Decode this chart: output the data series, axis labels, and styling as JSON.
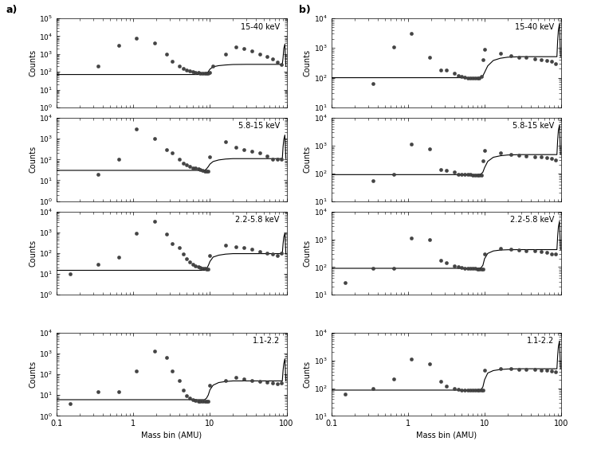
{
  "fig_width": 7.49,
  "fig_height": 5.74,
  "dpi": 100,
  "panel_a_label": "a)",
  "panel_b_label": "b)",
  "xlabel": "Mass bin (AMU)",
  "ylabel": "Counts",
  "xlim": [
    0.1,
    100
  ],
  "panel_a": {
    "subplots": [
      {
        "label": "15-40 keV",
        "ylim": [
          1,
          100000.0
        ],
        "line_x": [
          0.1,
          0.5,
          1.0,
          2.0,
          3.0,
          4.0,
          5.0,
          6.0,
          7.0,
          8.0,
          8.5,
          9.0,
          9.5,
          10.0,
          11.0,
          13.0,
          16.0,
          20.0,
          30.0,
          40.0,
          50.0,
          60.0,
          70.0,
          80.0,
          88.0,
          90.0,
          92.0,
          95.0,
          98.0
        ],
        "line_y": [
          70,
          70,
          70,
          70,
          70,
          70,
          70,
          70,
          70,
          70,
          70,
          80,
          100,
          140,
          190,
          220,
          240,
          255,
          260,
          260,
          260,
          260,
          260,
          260,
          260,
          600,
          2000,
          3500,
          200
        ],
        "scatter_x": [
          0.35,
          0.65,
          1.1,
          1.9,
          2.7,
          3.2,
          4.0,
          4.5,
          5.0,
          5.5,
          6.0,
          6.5,
          7.0,
          7.5,
          8.0,
          8.5,
          9.0,
          9.5,
          10.0,
          11.0,
          16.0,
          22.0,
          28.0,
          35.0,
          45.0,
          55.0,
          65.0,
          75.0,
          85.0
        ],
        "scatter_y": [
          200,
          3000,
          8000,
          4000,
          1000,
          400,
          200,
          150,
          130,
          115,
          100,
          95,
          90,
          85,
          80,
          80,
          80,
          85,
          90,
          200,
          1000,
          2500,
          2000,
          1500,
          1000,
          700,
          500,
          350,
          250
        ]
      },
      {
        "label": "5.8-15 keV",
        "ylim": [
          1,
          10000.0
        ],
        "line_x": [
          0.1,
          0.5,
          1.0,
          2.0,
          3.0,
          4.0,
          5.0,
          6.0,
          7.0,
          8.0,
          8.5,
          9.0,
          9.5,
          10.0,
          11.0,
          13.0,
          16.0,
          20.0,
          30.0,
          40.0,
          50.0,
          60.0,
          70.0,
          80.0,
          88.0,
          90.0,
          92.0,
          95.0,
          98.0
        ],
        "line_y": [
          30,
          30,
          30,
          30,
          30,
          30,
          30,
          30,
          30,
          30,
          30,
          35,
          45,
          60,
          80,
          95,
          105,
          110,
          110,
          110,
          110,
          110,
          110,
          110,
          110,
          400,
          900,
          1500,
          110
        ],
        "scatter_x": [
          0.35,
          0.65,
          1.1,
          1.9,
          2.7,
          3.2,
          4.0,
          4.5,
          5.0,
          5.5,
          6.0,
          6.5,
          7.0,
          7.5,
          8.0,
          8.5,
          9.0,
          9.5,
          10.0,
          16.0,
          22.0,
          28.0,
          35.0,
          45.0,
          55.0,
          65.0,
          75.0,
          85.0
        ],
        "scatter_y": [
          20,
          100,
          3000,
          1000,
          300,
          200,
          100,
          65,
          55,
          45,
          40,
          38,
          35,
          32,
          30,
          28,
          28,
          28,
          130,
          700,
          400,
          300,
          250,
          200,
          150,
          100,
          100,
          100
        ]
      },
      {
        "label": "2.2-5.8 keV",
        "ylim": [
          1,
          10000.0
        ],
        "line_x": [
          0.1,
          0.5,
          1.0,
          2.0,
          3.0,
          4.0,
          5.0,
          6.0,
          7.0,
          8.0,
          8.5,
          9.0,
          9.5,
          10.0,
          11.0,
          13.0,
          16.0,
          20.0,
          30.0,
          40.0,
          50.0,
          60.0,
          70.0,
          80.0,
          88.0,
          90.0,
          92.0,
          95.0,
          98.0
        ],
        "line_y": [
          15,
          15,
          15,
          15,
          15,
          15,
          15,
          15,
          15,
          15,
          15,
          18,
          25,
          40,
          65,
          80,
          90,
          95,
          95,
          95,
          95,
          95,
          95,
          95,
          95,
          280,
          600,
          900,
          95
        ],
        "scatter_x": [
          0.15,
          0.35,
          0.65,
          1.1,
          1.9,
          2.7,
          3.2,
          4.0,
          4.5,
          5.0,
          5.5,
          6.0,
          6.5,
          7.0,
          7.5,
          8.0,
          8.5,
          9.0,
          9.5,
          10.0,
          16.0,
          22.0,
          28.0,
          35.0,
          45.0,
          55.0,
          65.0,
          75.0,
          85.0
        ],
        "scatter_y": [
          10,
          28,
          65,
          900,
          3500,
          800,
          300,
          180,
          90,
          55,
          38,
          30,
          25,
          22,
          20,
          18,
          18,
          17,
          17,
          80,
          250,
          200,
          190,
          150,
          120,
          100,
          90,
          75,
          100
        ]
      },
      {
        "label": "1.1-2.2",
        "ylim": [
          1,
          10000.0
        ],
        "line_x": [
          0.1,
          0.5,
          1.0,
          2.0,
          3.0,
          4.0,
          5.0,
          6.0,
          7.0,
          8.0,
          8.5,
          9.0,
          9.5,
          10.0,
          11.0,
          13.0,
          16.0,
          20.0,
          30.0,
          40.0,
          50.0,
          60.0,
          70.0,
          80.0,
          88.0,
          90.0,
          92.0,
          95.0,
          98.0
        ],
        "line_y": [
          6,
          6,
          6,
          6,
          6,
          6,
          6,
          6,
          6,
          6,
          6,
          7,
          10,
          18,
          30,
          40,
          45,
          48,
          48,
          48,
          48,
          48,
          48,
          48,
          48,
          150,
          320,
          550,
          48
        ],
        "scatter_x": [
          0.15,
          0.35,
          0.65,
          1.1,
          1.9,
          2.7,
          3.2,
          4.0,
          4.5,
          5.0,
          5.5,
          6.0,
          6.5,
          7.0,
          7.5,
          8.0,
          8.5,
          9.0,
          9.5,
          10.0,
          16.0,
          22.0,
          28.0,
          35.0,
          45.0,
          55.0,
          65.0,
          75.0,
          85.0
        ],
        "scatter_y": [
          4,
          14,
          14,
          150,
          1300,
          650,
          150,
          50,
          18,
          9,
          7,
          6,
          5.5,
          5,
          5,
          5,
          5,
          5,
          5,
          30,
          50,
          70,
          60,
          50,
          45,
          42,
          38,
          35,
          38
        ]
      }
    ]
  },
  "panel_b": {
    "subplots": [
      {
        "label": "15-40 keV",
        "ylim": [
          10,
          10000.0
        ],
        "line_x": [
          0.1,
          0.5,
          1.0,
          2.0,
          3.0,
          4.0,
          5.0,
          6.0,
          7.0,
          8.0,
          8.5,
          9.0,
          9.5,
          10.0,
          11.0,
          13.0,
          16.0,
          20.0,
          30.0,
          40.0,
          50.0,
          60.0,
          70.0,
          80.0,
          88.0,
          90.0,
          92.0,
          95.0,
          98.0
        ],
        "line_y": [
          100,
          100,
          100,
          100,
          100,
          100,
          100,
          100,
          100,
          100,
          100,
          105,
          115,
          150,
          250,
          380,
          450,
          490,
          510,
          510,
          510,
          510,
          510,
          510,
          510,
          1800,
          4000,
          6500,
          510
        ],
        "scatter_x": [
          0.35,
          0.65,
          1.1,
          1.9,
          2.7,
          3.2,
          4.0,
          4.5,
          5.0,
          5.5,
          6.0,
          6.5,
          7.0,
          7.5,
          8.0,
          8.5,
          9.0,
          9.5,
          10.0,
          16.0,
          22.0,
          28.0,
          35.0,
          45.0,
          55.0,
          65.0,
          75.0,
          85.0
        ],
        "scatter_y": [
          65,
          1100,
          3000,
          500,
          180,
          180,
          140,
          120,
          110,
          105,
          100,
          100,
          100,
          100,
          100,
          100,
          110,
          400,
          900,
          650,
          550,
          490,
          480,
          440,
          410,
          380,
          350,
          300
        ]
      },
      {
        "label": "5.8-15 keV",
        "ylim": [
          10,
          10000.0
        ],
        "line_x": [
          0.1,
          0.5,
          1.0,
          2.0,
          3.0,
          4.0,
          5.0,
          6.0,
          7.0,
          8.0,
          8.5,
          9.0,
          9.5,
          10.0,
          11.0,
          13.0,
          16.0,
          20.0,
          30.0,
          40.0,
          50.0,
          60.0,
          70.0,
          80.0,
          88.0,
          90.0,
          92.0,
          95.0,
          98.0
        ],
        "line_y": [
          90,
          90,
          90,
          90,
          90,
          90,
          90,
          90,
          90,
          90,
          90,
          95,
          110,
          160,
          270,
          380,
          430,
          460,
          475,
          475,
          475,
          475,
          475,
          475,
          475,
          1600,
          3600,
          5500,
          475
        ],
        "scatter_x": [
          0.35,
          0.65,
          1.1,
          1.9,
          2.7,
          3.2,
          4.0,
          4.5,
          5.0,
          5.5,
          6.0,
          6.5,
          7.0,
          7.5,
          8.0,
          8.5,
          9.0,
          9.5,
          10.0,
          16.0,
          22.0,
          28.0,
          35.0,
          45.0,
          55.0,
          65.0,
          75.0,
          85.0
        ],
        "scatter_y": [
          55,
          90,
          1100,
          750,
          140,
          130,
          110,
          95,
          93,
          90,
          90,
          90,
          88,
          88,
          87,
          87,
          87,
          290,
          650,
          550,
          480,
          445,
          430,
          400,
          390,
          370,
          340,
          300
        ]
      },
      {
        "label": "2.2-5.8 keV",
        "ylim": [
          10,
          10000.0
        ],
        "line_x": [
          0.1,
          0.5,
          1.0,
          2.0,
          3.0,
          4.0,
          5.0,
          6.0,
          7.0,
          8.0,
          8.5,
          9.0,
          9.5,
          10.0,
          11.0,
          13.0,
          16.0,
          20.0,
          30.0,
          40.0,
          50.0,
          60.0,
          70.0,
          80.0,
          88.0,
          90.0,
          92.0,
          95.0,
          98.0
        ],
        "line_y": [
          90,
          90,
          90,
          90,
          90,
          90,
          90,
          90,
          90,
          90,
          90,
          95,
          115,
          200,
          310,
          380,
          410,
          420,
          425,
          425,
          425,
          425,
          425,
          425,
          425,
          1300,
          2800,
          4500,
          425
        ],
        "scatter_x": [
          0.15,
          0.35,
          0.65,
          1.1,
          1.9,
          2.7,
          3.2,
          4.0,
          4.5,
          5.0,
          5.5,
          6.0,
          6.5,
          7.0,
          7.5,
          8.0,
          8.5,
          9.0,
          9.5,
          10.0,
          16.0,
          22.0,
          28.0,
          35.0,
          45.0,
          55.0,
          65.0,
          75.0,
          85.0
        ],
        "scatter_y": [
          28,
          90,
          90,
          1100,
          1000,
          180,
          140,
          110,
          100,
          95,
          90,
          90,
          90,
          88,
          88,
          87,
          87,
          87,
          87,
          290,
          470,
          430,
          410,
          395,
          380,
          360,
          340,
          300,
          290
        ]
      },
      {
        "label": "1.1-2.2",
        "ylim": [
          10,
          10000.0
        ],
        "line_x": [
          0.1,
          0.5,
          1.0,
          2.0,
          3.0,
          4.0,
          5.0,
          6.0,
          7.0,
          8.0,
          8.5,
          9.0,
          9.5,
          10.0,
          11.0,
          13.0,
          16.0,
          20.0,
          30.0,
          40.0,
          50.0,
          60.0,
          70.0,
          80.0,
          88.0,
          90.0,
          92.0,
          95.0,
          98.0
        ],
        "line_y": [
          85,
          85,
          85,
          85,
          85,
          85,
          85,
          85,
          85,
          85,
          85,
          90,
          110,
          200,
          350,
          430,
          470,
          490,
          500,
          500,
          500,
          500,
          500,
          500,
          500,
          1500,
          3200,
          5000,
          500
        ],
        "scatter_x": [
          0.15,
          0.35,
          0.65,
          1.1,
          1.9,
          2.7,
          3.2,
          4.0,
          4.5,
          5.0,
          5.5,
          6.0,
          6.5,
          7.0,
          7.5,
          8.0,
          8.5,
          9.0,
          9.5,
          10.0,
          16.0,
          22.0,
          28.0,
          35.0,
          45.0,
          55.0,
          65.0,
          75.0,
          85.0
        ],
        "scatter_y": [
          60,
          95,
          210,
          1100,
          760,
          170,
          120,
          95,
          90,
          87,
          85,
          85,
          84,
          83,
          83,
          83,
          83,
          83,
          83,
          430,
          520,
          490,
          480,
          470,
          460,
          450,
          430,
          420,
          390
        ]
      }
    ]
  }
}
